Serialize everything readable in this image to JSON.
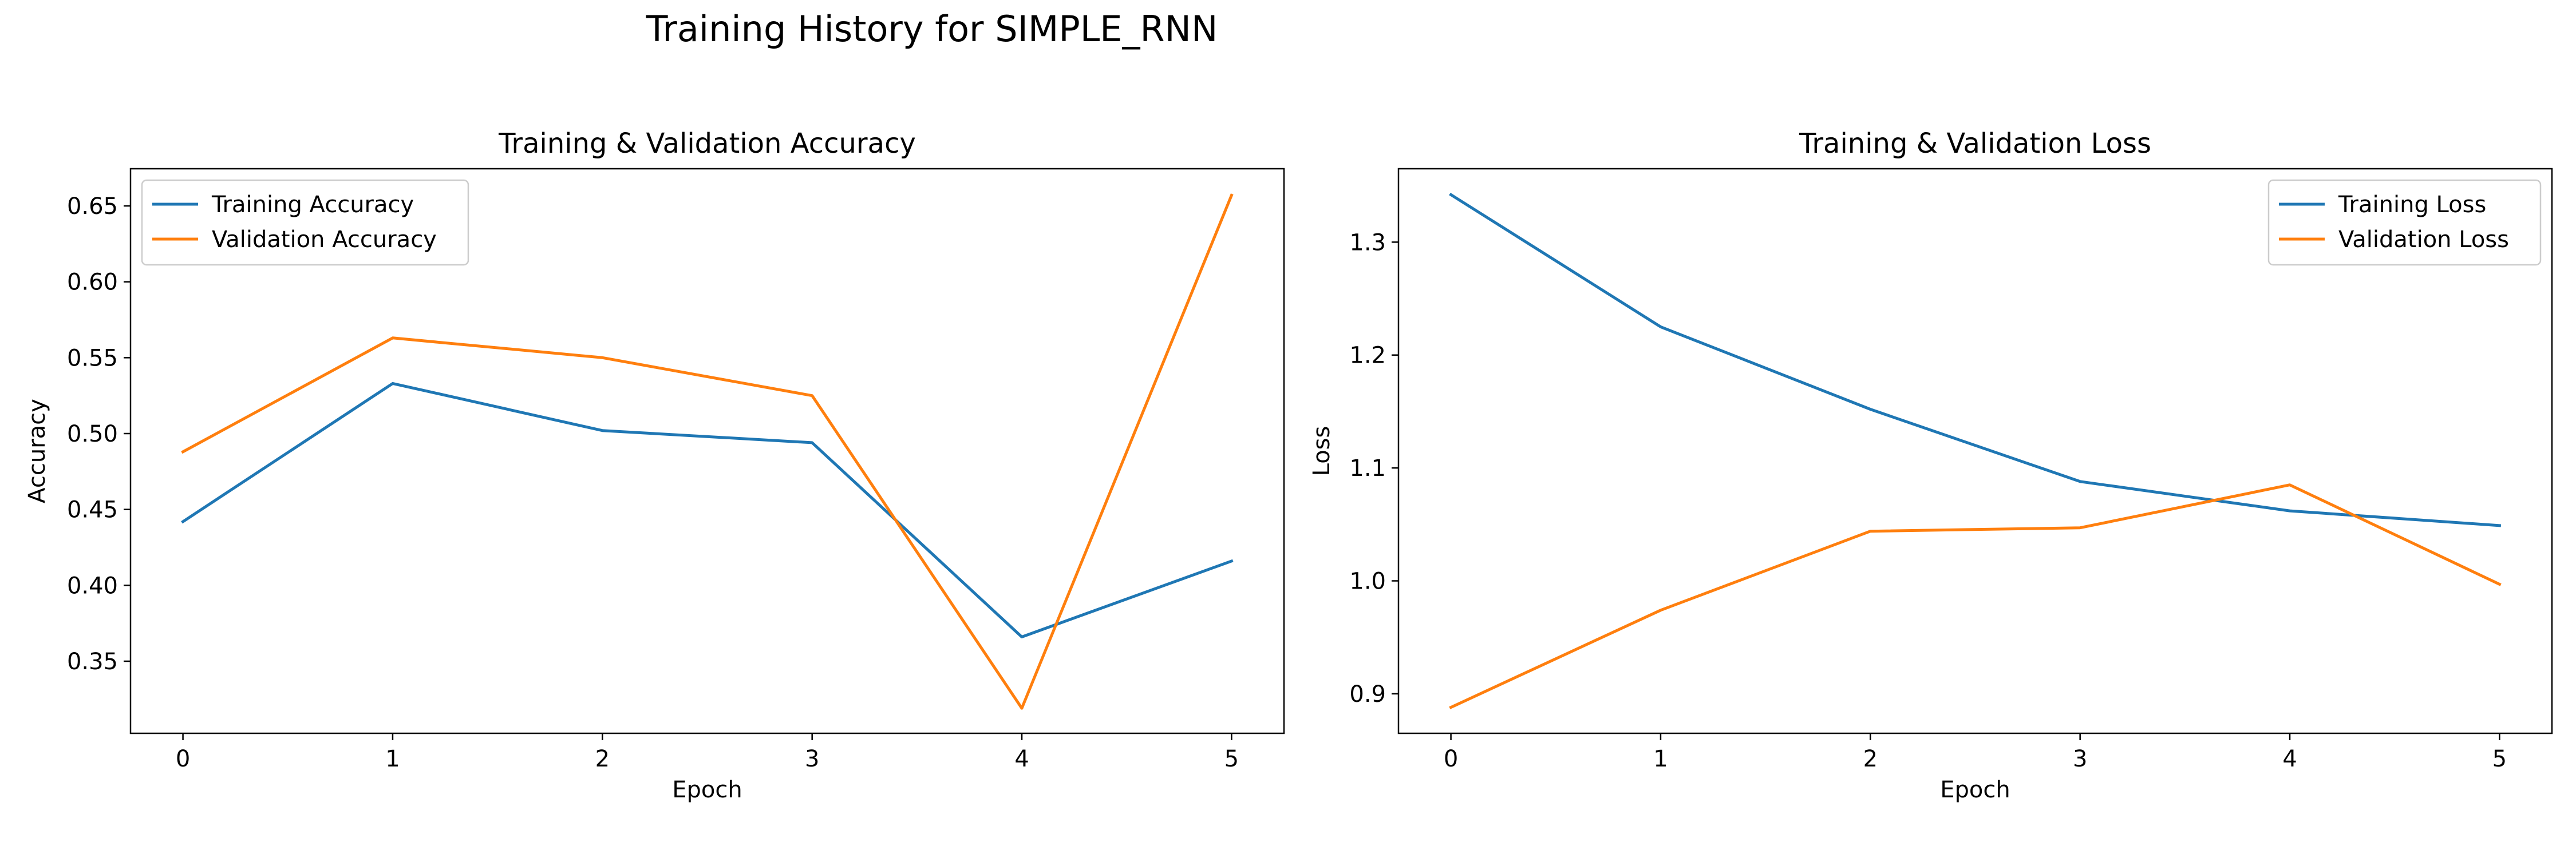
{
  "figure": {
    "title": "Training History for SIMPLE_RNN"
  },
  "chart_data": [
    {
      "type": "line",
      "title": "Training & Validation Accuracy",
      "xlabel": "Epoch",
      "ylabel": "Accuracy",
      "x": [
        0,
        1,
        2,
        3,
        4,
        5
      ],
      "xticks": [
        "0",
        "1",
        "2",
        "3",
        "4",
        "5"
      ],
      "xlim": [
        -0.25,
        5.25
      ],
      "ylim": [
        0.3025,
        0.6745
      ],
      "yticks": [
        "0.35",
        "0.40",
        "0.45",
        "0.50",
        "0.55",
        "0.60",
        "0.65"
      ],
      "grid": false,
      "legend_position": "upper-left",
      "series": [
        {
          "name": "Training Accuracy",
          "color": "#1f77b4",
          "values": [
            0.442,
            0.533,
            0.502,
            0.494,
            0.366,
            0.416
          ]
        },
        {
          "name": "Validation Accuracy",
          "color": "#ff7f0e",
          "values": [
            0.488,
            0.563,
            0.55,
            0.525,
            0.319,
            0.657
          ]
        }
      ]
    },
    {
      "type": "line",
      "title": "Training & Validation Loss",
      "xlabel": "Epoch",
      "ylabel": "Loss",
      "x": [
        0,
        1,
        2,
        3,
        4,
        5
      ],
      "xticks": [
        "0",
        "1",
        "2",
        "3",
        "4",
        "5"
      ],
      "xlim": [
        -0.25,
        5.25
      ],
      "ylim": [
        0.865,
        1.365
      ],
      "yticks": [
        "0.9",
        "1.0",
        "1.1",
        "1.2",
        "1.3"
      ],
      "grid": false,
      "legend_position": "upper-right",
      "series": [
        {
          "name": "Training Loss",
          "color": "#1f77b4",
          "values": [
            1.342,
            1.225,
            1.152,
            1.088,
            1.062,
            1.049
          ]
        },
        {
          "name": "Validation Loss",
          "color": "#ff7f0e",
          "values": [
            0.888,
            0.974,
            1.044,
            1.047,
            1.085,
            0.997
          ]
        }
      ]
    }
  ]
}
